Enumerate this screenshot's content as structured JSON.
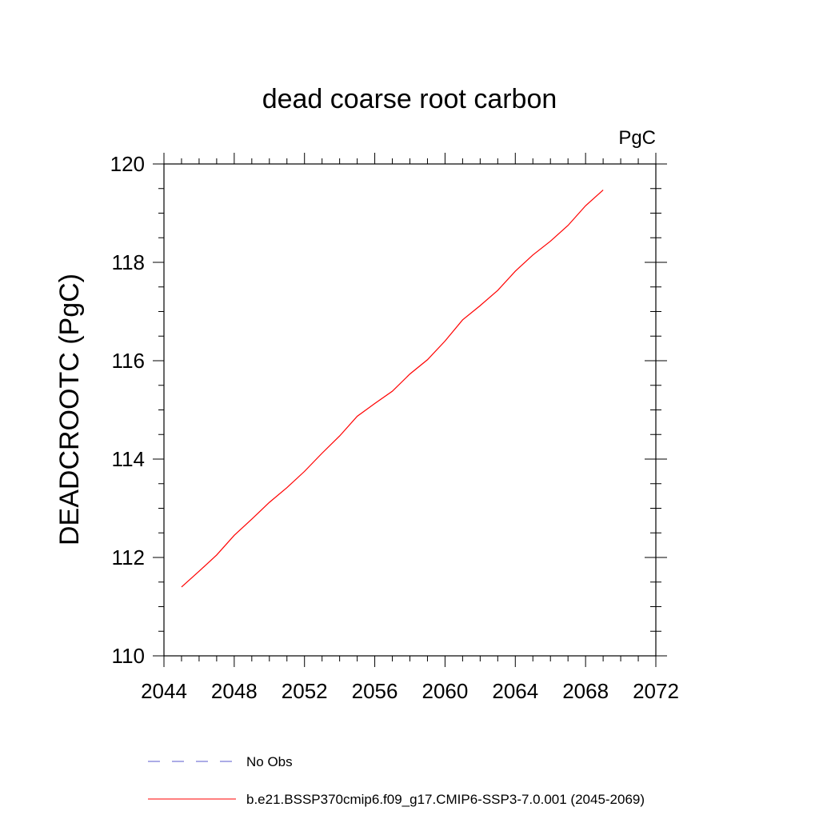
{
  "chart_data": {
    "type": "line",
    "title": "dead coarse root carbon",
    "units": "PgC",
    "ylabel": "DEADCROOTC  (PgC)",
    "xlabel": "",
    "xlim": [
      2044,
      2072
    ],
    "ylim": [
      110,
      120
    ],
    "xticks": [
      2044,
      2048,
      2052,
      2056,
      2060,
      2064,
      2068,
      2072
    ],
    "yticks": [
      110,
      112,
      114,
      116,
      118,
      120
    ],
    "x": [
      2045,
      2046,
      2047,
      2048,
      2049,
      2050,
      2051,
      2052,
      2053,
      2054,
      2055,
      2056,
      2057,
      2058,
      2059,
      2060,
      2061,
      2062,
      2063,
      2064,
      2065,
      2066,
      2067,
      2068,
      2069
    ],
    "series": [
      {
        "name": "b.e21.BSSP370cmip6.f09_g17.CMIP6-SSP3-7.0.001 (2045-2069)",
        "color": "#ff0000",
        "dash": "solid",
        "values": [
          111.4,
          111.72,
          112.05,
          112.45,
          112.78,
          113.12,
          113.42,
          113.75,
          114.12,
          114.47,
          114.87,
          115.13,
          115.38,
          115.73,
          116.02,
          116.4,
          116.83,
          117.12,
          117.43,
          117.82,
          118.15,
          118.43,
          118.75,
          119.15,
          119.47
        ]
      }
    ],
    "legend": [
      {
        "label": "No Obs",
        "color": "#5a5acd",
        "dash": "dashed"
      },
      {
        "label": "b.e21.BSSP370cmip6.f09_g17.CMIP6-SSP3-7.0.001 (2045-2069)",
        "color": "#ff0000",
        "dash": "solid"
      }
    ],
    "legend_position": "bottom",
    "grid": false
  }
}
